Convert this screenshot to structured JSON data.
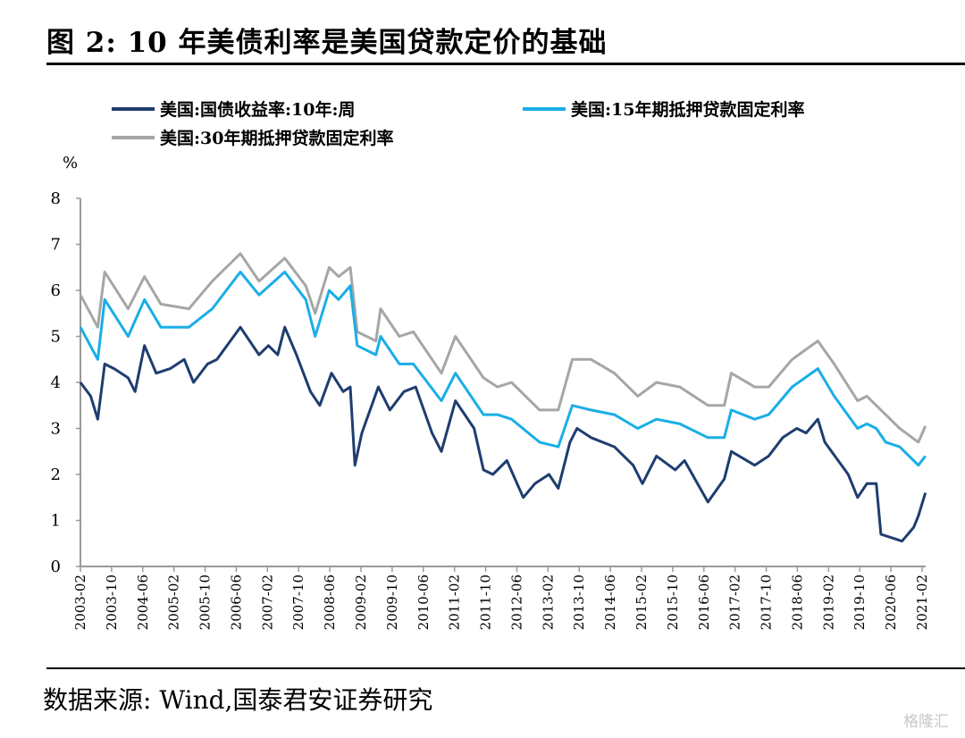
{
  "title": "图 2:  10 年美债利率是美国贷款定价的基础",
  "source": "数据来源:  Wind,国泰君安证券研究",
  "watermark": "格隆汇",
  "chart_data": {
    "type": "line",
    "title": "图 2:  10 年美债利率是美国贷款定价的基础",
    "ylabel": "%",
    "xlabel": "",
    "ylim": [
      0,
      8
    ],
    "yticks": [
      "0",
      "1",
      "2",
      "3",
      "4",
      "5",
      "6",
      "7",
      "8"
    ],
    "xlim": [
      2003.08,
      2021.08
    ],
    "xticks": [
      "2003-02",
      "2003-10",
      "2004-06",
      "2005-02",
      "2005-10",
      "2006-06",
      "2007-02",
      "2007-10",
      "2008-06",
      "2009-02",
      "2009-10",
      "2010-06",
      "2011-02",
      "2011-10",
      "2012-06",
      "2013-02",
      "2013-10",
      "2014-06",
      "2015-02",
      "2015-10",
      "2016-06",
      "2017-02",
      "2017-10",
      "2018-06",
      "2019-02",
      "2019-10",
      "2020-06",
      "2021-02"
    ],
    "grid": false,
    "legend_position": "top",
    "series": [
      {
        "name": "美国:国债收益率:10年:周",
        "color": "#1f3d6f",
        "points": [
          [
            2003.08,
            4.0
          ],
          [
            2003.3,
            3.7
          ],
          [
            2003.45,
            3.2
          ],
          [
            2003.6,
            4.4
          ],
          [
            2003.8,
            4.3
          ],
          [
            2004.1,
            4.1
          ],
          [
            2004.25,
            3.8
          ],
          [
            2004.45,
            4.8
          ],
          [
            2004.7,
            4.2
          ],
          [
            2005.0,
            4.3
          ],
          [
            2005.3,
            4.5
          ],
          [
            2005.5,
            4.0
          ],
          [
            2005.8,
            4.4
          ],
          [
            2006.0,
            4.5
          ],
          [
            2006.5,
            5.2
          ],
          [
            2006.9,
            4.6
          ],
          [
            2007.1,
            4.8
          ],
          [
            2007.3,
            4.6
          ],
          [
            2007.45,
            5.2
          ],
          [
            2007.7,
            4.6
          ],
          [
            2008.0,
            3.8
          ],
          [
            2008.2,
            3.5
          ],
          [
            2008.45,
            4.2
          ],
          [
            2008.7,
            3.8
          ],
          [
            2008.85,
            3.9
          ],
          [
            2008.95,
            2.2
          ],
          [
            2009.1,
            2.9
          ],
          [
            2009.45,
            3.9
          ],
          [
            2009.7,
            3.4
          ],
          [
            2010.0,
            3.8
          ],
          [
            2010.25,
            3.9
          ],
          [
            2010.6,
            2.9
          ],
          [
            2010.8,
            2.5
          ],
          [
            2011.1,
            3.6
          ],
          [
            2011.5,
            3.0
          ],
          [
            2011.7,
            2.1
          ],
          [
            2011.9,
            2.0
          ],
          [
            2012.2,
            2.3
          ],
          [
            2012.55,
            1.5
          ],
          [
            2012.8,
            1.8
          ],
          [
            2013.1,
            2.0
          ],
          [
            2013.3,
            1.7
          ],
          [
            2013.55,
            2.7
          ],
          [
            2013.7,
            3.0
          ],
          [
            2014.0,
            2.8
          ],
          [
            2014.5,
            2.6
          ],
          [
            2014.9,
            2.2
          ],
          [
            2015.1,
            1.8
          ],
          [
            2015.4,
            2.4
          ],
          [
            2015.8,
            2.1
          ],
          [
            2016.0,
            2.3
          ],
          [
            2016.5,
            1.4
          ],
          [
            2016.85,
            1.9
          ],
          [
            2017.0,
            2.5
          ],
          [
            2017.5,
            2.2
          ],
          [
            2017.8,
            2.4
          ],
          [
            2018.1,
            2.8
          ],
          [
            2018.4,
            3.0
          ],
          [
            2018.6,
            2.9
          ],
          [
            2018.85,
            3.2
          ],
          [
            2019.0,
            2.7
          ],
          [
            2019.5,
            2.0
          ],
          [
            2019.7,
            1.5
          ],
          [
            2019.9,
            1.8
          ],
          [
            2020.1,
            1.8
          ],
          [
            2020.2,
            0.7
          ],
          [
            2020.5,
            0.6
          ],
          [
            2020.65,
            0.55
          ],
          [
            2020.9,
            0.85
          ],
          [
            2021.0,
            1.1
          ],
          [
            2021.15,
            1.6
          ]
        ]
      },
      {
        "name": "美国:15年期抵押贷款固定利率",
        "color": "#1aaee6",
        "points": [
          [
            2003.08,
            5.2
          ],
          [
            2003.45,
            4.5
          ],
          [
            2003.6,
            5.8
          ],
          [
            2004.1,
            5.0
          ],
          [
            2004.45,
            5.8
          ],
          [
            2004.8,
            5.2
          ],
          [
            2005.4,
            5.2
          ],
          [
            2005.9,
            5.6
          ],
          [
            2006.5,
            6.4
          ],
          [
            2006.9,
            5.9
          ],
          [
            2007.45,
            6.4
          ],
          [
            2007.9,
            5.8
          ],
          [
            2008.1,
            5.0
          ],
          [
            2008.4,
            6.0
          ],
          [
            2008.6,
            5.8
          ],
          [
            2008.85,
            6.1
          ],
          [
            2009.0,
            4.8
          ],
          [
            2009.4,
            4.6
          ],
          [
            2009.5,
            5.0
          ],
          [
            2009.9,
            4.4
          ],
          [
            2010.2,
            4.4
          ],
          [
            2010.8,
            3.6
          ],
          [
            2011.1,
            4.2
          ],
          [
            2011.7,
            3.3
          ],
          [
            2012.0,
            3.3
          ],
          [
            2012.3,
            3.2
          ],
          [
            2012.9,
            2.7
          ],
          [
            2013.3,
            2.6
          ],
          [
            2013.6,
            3.5
          ],
          [
            2014.0,
            3.4
          ],
          [
            2014.5,
            3.3
          ],
          [
            2015.0,
            3.0
          ],
          [
            2015.4,
            3.2
          ],
          [
            2015.9,
            3.1
          ],
          [
            2016.5,
            2.8
          ],
          [
            2016.85,
            2.8
          ],
          [
            2017.0,
            3.4
          ],
          [
            2017.5,
            3.2
          ],
          [
            2017.8,
            3.3
          ],
          [
            2018.3,
            3.9
          ],
          [
            2018.85,
            4.3
          ],
          [
            2019.2,
            3.7
          ],
          [
            2019.7,
            3.0
          ],
          [
            2019.9,
            3.1
          ],
          [
            2020.1,
            3.0
          ],
          [
            2020.3,
            2.7
          ],
          [
            2020.6,
            2.6
          ],
          [
            2021.0,
            2.2
          ],
          [
            2021.15,
            2.4
          ]
        ]
      },
      {
        "name": "美国:30年期抵押贷款固定利率",
        "color": "#a6a6a6",
        "points": [
          [
            2003.08,
            5.9
          ],
          [
            2003.45,
            5.2
          ],
          [
            2003.6,
            6.4
          ],
          [
            2004.1,
            5.6
          ],
          [
            2004.45,
            6.3
          ],
          [
            2004.8,
            5.7
          ],
          [
            2005.4,
            5.6
          ],
          [
            2005.9,
            6.2
          ],
          [
            2006.5,
            6.8
          ],
          [
            2006.9,
            6.2
          ],
          [
            2007.45,
            6.7
          ],
          [
            2007.9,
            6.1
          ],
          [
            2008.1,
            5.5
          ],
          [
            2008.4,
            6.5
          ],
          [
            2008.6,
            6.3
          ],
          [
            2008.85,
            6.5
          ],
          [
            2009.0,
            5.1
          ],
          [
            2009.4,
            4.9
          ],
          [
            2009.5,
            5.6
          ],
          [
            2009.9,
            5.0
          ],
          [
            2010.2,
            5.1
          ],
          [
            2010.8,
            4.2
          ],
          [
            2011.1,
            5.0
          ],
          [
            2011.7,
            4.1
          ],
          [
            2012.0,
            3.9
          ],
          [
            2012.3,
            4.0
          ],
          [
            2012.9,
            3.4
          ],
          [
            2013.3,
            3.4
          ],
          [
            2013.6,
            4.5
          ],
          [
            2014.0,
            4.5
          ],
          [
            2014.5,
            4.2
          ],
          [
            2015.0,
            3.7
          ],
          [
            2015.4,
            4.0
          ],
          [
            2015.9,
            3.9
          ],
          [
            2016.5,
            3.5
          ],
          [
            2016.85,
            3.5
          ],
          [
            2017.0,
            4.2
          ],
          [
            2017.5,
            3.9
          ],
          [
            2017.8,
            3.9
          ],
          [
            2018.3,
            4.5
          ],
          [
            2018.85,
            4.9
          ],
          [
            2019.2,
            4.4
          ],
          [
            2019.7,
            3.6
          ],
          [
            2019.9,
            3.7
          ],
          [
            2020.1,
            3.5
          ],
          [
            2020.3,
            3.3
          ],
          [
            2020.6,
            3.0
          ],
          [
            2021.0,
            2.7
          ],
          [
            2021.15,
            3.05
          ]
        ]
      }
    ]
  }
}
